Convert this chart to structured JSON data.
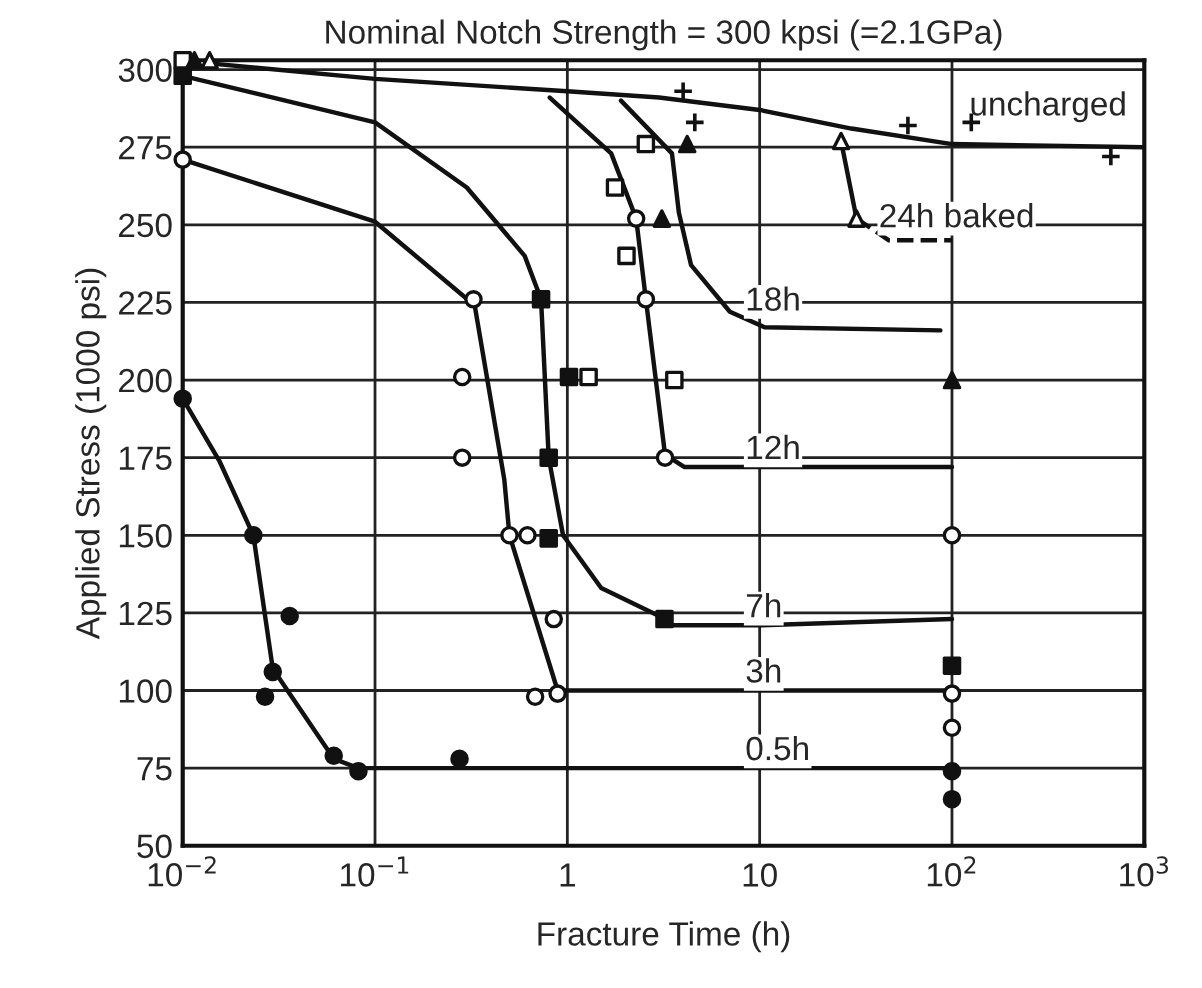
{
  "chart_data": {
    "type": "line",
    "title": "Nominal Notch Strength = 300 kpsi (=2.1GPa)",
    "xlabel": "Fracture Time (h)",
    "ylabel": "Applied Stress (1000 psi)",
    "log": "x",
    "grid": true,
    "legend": false,
    "xlim": [
      0.01,
      1000
    ],
    "ylim": [
      50,
      303
    ],
    "xticks": [
      {
        "value": 0.01,
        "label": "10$^{−2}$"
      },
      {
        "value": 0.1,
        "label": "10$^{−1}$"
      },
      1,
      10,
      {
        "value": 100,
        "label": "10$^{2}$"
      },
      {
        "value": 1000,
        "label": "10$^{3}$"
      }
    ],
    "yticks": [
      50,
      75,
      100,
      125,
      150,
      175,
      200,
      225,
      250,
      275,
      300
    ],
    "series": [
      {
        "name": "uncharged",
        "color": "#111111",
        "x": [
          0.0138,
          0.1,
          1,
          3,
          10,
          30,
          100,
          1000
        ],
        "values": [
          302,
          297,
          293,
          291,
          287,
          281,
          276,
          275
        ]
      },
      {
        "name": "12h",
        "color": "#111111",
        "x": [
          0.81,
          1.69,
          2.28,
          2.56,
          3.22,
          4.05,
          10.6,
          100
        ],
        "values": [
          291,
          273,
          252,
          226,
          176,
          172,
          172,
          172
        ]
      },
      {
        "name": "18h",
        "color": "#111111",
        "x": [
          1.9,
          3.5,
          3.8,
          4.4,
          7.0,
          10.6,
          87
        ],
        "values": [
          290,
          273,
          254,
          237,
          222,
          217,
          216
        ]
      },
      {
        "name": "24h baked",
        "color": "#111111",
        "x": [
          26.5,
          31.9
        ],
        "values": [
          277,
          252
        ]
      },
      {
        "color": "#111111",
        "line_style": "dashed",
        "x": [
          31.9,
          47,
          100
        ],
        "values": [
          252,
          245,
          245
        ]
      },
      {
        "name": "7h",
        "color": "#111111",
        "x": [
          0.01,
          0.1,
          0.3,
          0.6,
          0.73,
          0.8,
          0.95,
          1.5,
          3,
          3.5,
          10,
          100
        ],
        "values": [
          298,
          283,
          262,
          240,
          226,
          175,
          150,
          133,
          124,
          121,
          121,
          123
        ]
      },
      {
        "name": "3h",
        "color": "#111111",
        "x": [
          0.01,
          0.1,
          0.33,
          0.47,
          0.5,
          0.89,
          100
        ],
        "values": [
          271,
          251,
          224,
          168,
          150,
          100,
          100
        ]
      },
      {
        "name": "0.5h",
        "color": "#111111",
        "x": [
          0.01,
          0.0155,
          0.0233,
          0.0294,
          0.061,
          0.082,
          100
        ],
        "values": [
          194,
          174,
          150,
          107,
          78,
          75,
          75
        ]
      },
      {
        "type": "scatter",
        "marker": "circle",
        "color": "#ffffff",
        "x": [
          0.01,
          0.325,
          0.284,
          0.284,
          0.5,
          0.62,
          0.85,
          0.68,
          0.89,
          2.28,
          2.56,
          3.22,
          100,
          100,
          100
        ],
        "values": [
          271,
          226,
          201,
          175,
          150,
          150,
          123,
          98,
          99,
          252,
          226,
          175,
          150,
          99,
          88
        ]
      },
      {
        "type": "scatter",
        "marker": "circle",
        "color": "#111111",
        "x": [
          0.01,
          0.0233,
          0.036,
          0.0294,
          0.0268,
          0.061,
          0.082,
          0.275,
          100,
          100
        ],
        "values": [
          194,
          150,
          124,
          106,
          98,
          79,
          74,
          78,
          74,
          65
        ]
      },
      {
        "type": "scatter",
        "marker": "square",
        "color": "#111111",
        "x": [
          0.01,
          0.73,
          1.02,
          0.8,
          0.8,
          3.2,
          100
        ],
        "values": [
          298,
          226,
          201,
          175,
          149,
          123,
          108
        ]
      },
      {
        "type": "scatter",
        "marker": "square",
        "color": "#ffffff",
        "x": [
          0.01,
          2.56,
          1.77,
          2.03,
          3.6,
          1.29
        ],
        "values": [
          303,
          276,
          262,
          240,
          200,
          201
        ]
      },
      {
        "type": "scatter",
        "marker": "triangle",
        "color": "#111111",
        "x": [
          0.0115,
          4.2,
          3.1,
          100
        ],
        "values": [
          303,
          276,
          252,
          200
        ]
      },
      {
        "type": "scatter",
        "marker": "triangle",
        "color": "#ffffff",
        "x": [
          0.0138,
          26.5,
          31.9
        ],
        "values": [
          303,
          277,
          252
        ]
      },
      {
        "type": "scatter",
        "marker": "cross",
        "color": "#111111",
        "x": [
          4.0,
          4.6,
          59,
          126,
          670
        ],
        "values": [
          293,
          283,
          282,
          283,
          272
        ]
      }
    ]
  }
}
